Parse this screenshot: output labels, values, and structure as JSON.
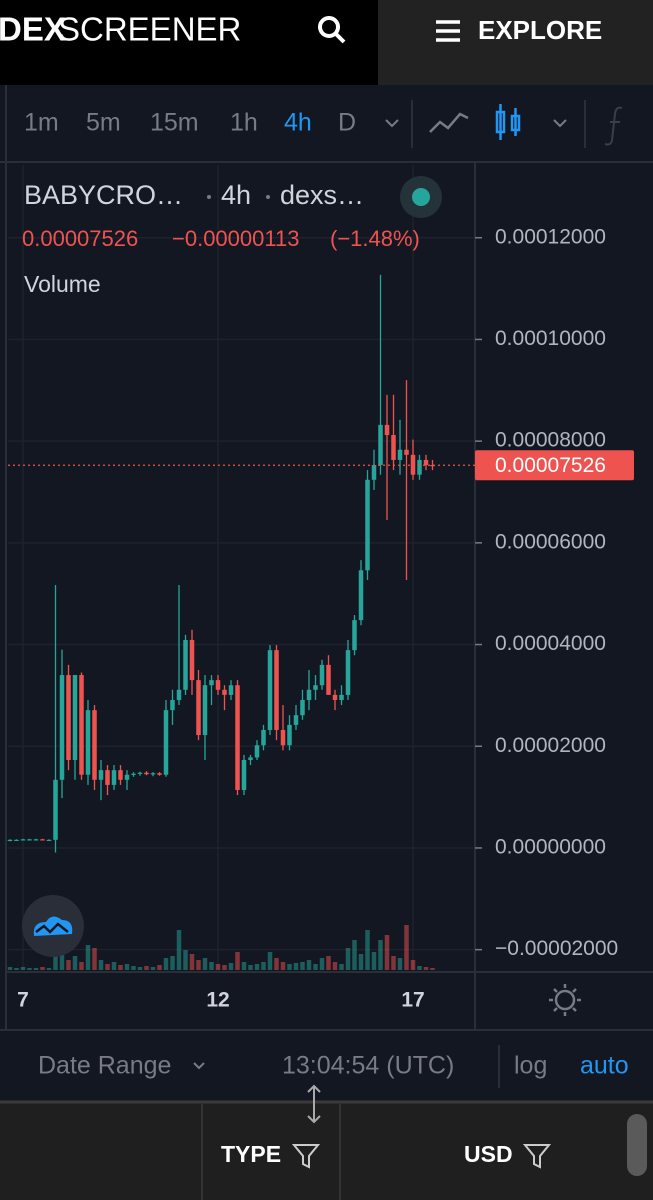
{
  "header": {
    "logo_bold": "DEX",
    "logo_light": "SCREENER",
    "menu": "EXPLORE"
  },
  "toolbar": {
    "intervals": [
      "1m",
      "5m",
      "15m",
      "1h",
      "4h",
      "D"
    ],
    "active": "4h"
  },
  "legend": {
    "symbol": "BABYCRO…",
    "interval": "4h",
    "exchange": "dexs…",
    "indicator": "Volume"
  },
  "chart_data": {
    "type": "candlestick",
    "categories": [
      null,
      null,
      "7",
      null,
      null,
      null,
      null,
      null,
      null,
      null,
      null,
      null,
      null,
      null,
      null,
      null,
      null,
      null,
      null,
      null,
      null,
      null,
      null,
      null,
      null,
      null,
      null,
      null,
      null,
      null,
      null,
      null,
      "12",
      null,
      null,
      null,
      null,
      null,
      null,
      null,
      null,
      null,
      null,
      null,
      null,
      null,
      null,
      null,
      null,
      null,
      null,
      null,
      null,
      null,
      null,
      null,
      null,
      null,
      null,
      null,
      null,
      null,
      "17",
      null,
      null,
      null
    ],
    "open": [
      1.5e-06,
      1.6e-06,
      1.6e-06,
      1.7e-06,
      1.7e-06,
      1.7e-06,
      1.6e-06,
      1.6e-06,
      1.34e-05,
      3.4e-05,
      1.73e-05,
      3.4e-05,
      1.44e-05,
      2.71e-05,
      1.34e-05,
      1.53e-05,
      1.24e-05,
      1.53e-05,
      1.34e-05,
      1.44e-05,
      1.46e-05,
      1.48e-05,
      1.45e-05,
      1.47e-05,
      1.44e-05,
      2.71e-05,
      2.91e-05,
      3.11e-05,
      4.09e-05,
      3.3e-05,
      2.22e-05,
      3.2e-05,
      3.3e-05,
      3.11e-05,
      3.01e-05,
      3.2e-05,
      1.14e-05,
      1.73e-05,
      1.78e-05,
      2.02e-05,
      2.32e-05,
      3.89e-05,
      2.32e-05,
      2.02e-05,
      2.42e-05,
      2.61e-05,
      2.91e-05,
      3.11e-05,
      3.2e-05,
      3.6e-05,
      3.01e-05,
      2.91e-05,
      3.01e-05,
      3.89e-05,
      4.48e-05,
      5.46e-05,
      7.24e-05,
      7.53e-05,
      8.32e-05,
      8.12e-05,
      7.63e-05,
      7.83e-05,
      7.73e-05,
      7.34e-05,
      7.63e-05,
      7.53e-05
    ],
    "high": [
      1.7e-06,
      1.7e-06,
      1.8e-06,
      1.8e-06,
      1.8e-06,
      1.8e-06,
      1.7e-06,
      5.17e-05,
      3.9e-05,
      3.6e-05,
      3.4e-05,
      3.45e-05,
      2.91e-05,
      2.81e-05,
      1.73e-05,
      1.63e-05,
      1.63e-05,
      1.63e-05,
      1.53e-05,
      1.49e-05,
      1.5e-05,
      1.51e-05,
      1.49e-05,
      1.49e-05,
      2.91e-05,
      3.11e-05,
      5.17e-05,
      4.19e-05,
      4.29e-05,
      3.5e-05,
      3.4e-05,
      3.4e-05,
      3.4e-05,
      3.2e-05,
      3.3e-05,
      3.3e-05,
      1.83e-05,
      1.83e-05,
      2.12e-05,
      2.42e-05,
      3.99e-05,
      3.99e-05,
      2.81e-05,
      2.61e-05,
      2.81e-05,
      3.11e-05,
      3.5e-05,
      3.4e-05,
      3.7e-05,
      3.79e-05,
      3.11e-05,
      3.2e-05,
      4.09e-05,
      4.58e-05,
      5.66e-05,
      7.43e-05,
      7.83e-05,
      0.0001127,
      8.91e-05,
      8.91e-05,
      8.42e-05,
      9.2e-05,
      8.03e-05,
      7.73e-05,
      7.73e-05,
      7.63e-05
    ],
    "low": [
      1.3e-06,
      1.4e-06,
      1.5e-06,
      1.5e-06,
      1.6e-06,
      1.5e-06,
      1.4e-06,
      -9e-07,
      9.8e-06,
      1.53e-05,
      1.34e-05,
      1.34e-05,
      1.24e-05,
      1.14e-05,
      9.4e-06,
      1.04e-05,
      1.14e-05,
      1.24e-05,
      1.14e-05,
      1.4e-05,
      1.42e-05,
      1.43e-05,
      1.41e-05,
      1.42e-05,
      1.4e-05,
      2.42e-05,
      2.81e-05,
      3.01e-05,
      3.01e-05,
      2.12e-05,
      1.73e-05,
      2.81e-05,
      3.01e-05,
      2.71e-05,
      2.91e-05,
      1.04e-05,
      1.04e-05,
      1.63e-05,
      1.73e-05,
      1.92e-05,
      2.22e-05,
      2.12e-05,
      1.92e-05,
      1.92e-05,
      2.32e-05,
      2.52e-05,
      2.71e-05,
      2.91e-05,
      3.11e-05,
      3.01e-05,
      2.71e-05,
      2.81e-05,
      2.91e-05,
      3.79e-05,
      4.38e-05,
      5.27e-05,
      7.04e-05,
      7.34e-05,
      6.45e-05,
      7.43e-05,
      7.34e-05,
      5.27e-05,
      7.24e-05,
      7.24e-05,
      7.43e-05,
      7.43e-05
    ],
    "close": [
      1.6e-06,
      1.6e-06,
      1.7e-06,
      1.7e-06,
      1.7e-06,
      1.6e-06,
      1.6e-06,
      1.34e-05,
      3.4e-05,
      1.73e-05,
      3.4e-05,
      1.44e-05,
      2.71e-05,
      1.34e-05,
      1.53e-05,
      1.24e-05,
      1.53e-05,
      1.34e-05,
      1.44e-05,
      1.46e-05,
      1.48e-05,
      1.45e-05,
      1.47e-05,
      1.44e-05,
      2.71e-05,
      2.91e-05,
      3.11e-05,
      4.09e-05,
      3.3e-05,
      2.22e-05,
      3.2e-05,
      3.3e-05,
      3.11e-05,
      3.01e-05,
      3.2e-05,
      1.14e-05,
      1.73e-05,
      1.78e-05,
      2.02e-05,
      2.32e-05,
      3.89e-05,
      2.32e-05,
      2.02e-05,
      2.42e-05,
      2.61e-05,
      2.91e-05,
      3.11e-05,
      3.2e-05,
      3.6e-05,
      3.01e-05,
      2.91e-05,
      3.01e-05,
      3.89e-05,
      4.48e-05,
      5.46e-05,
      7.24e-05,
      7.53e-05,
      8.32e-05,
      8.12e-05,
      7.63e-05,
      7.83e-05,
      7.73e-05,
      7.34e-05,
      7.63e-05,
      7.53e-05,
      7.526e-05
    ],
    "volume": [
      3,
      2,
      3,
      2,
      2,
      3,
      2,
      40,
      18,
      10,
      14,
      8,
      25,
      22,
      10,
      6,
      8,
      5,
      6,
      4,
      3,
      4,
      3,
      5,
      12,
      14,
      40,
      20,
      16,
      10,
      12,
      8,
      6,
      5,
      7,
      18,
      8,
      5,
      6,
      8,
      18,
      12,
      8,
      6,
      7,
      8,
      10,
      6,
      12,
      14,
      8,
      6,
      22,
      30,
      16,
      40,
      18,
      30,
      35,
      14,
      12,
      45,
      10,
      4,
      3,
      2
    ],
    "up_color": "#26a69a",
    "down_color": "#ef5350",
    "ylim": [
      -2.4e-05,
      0.0001343
    ],
    "yticks": [
      {
        "value": -2e-05,
        "label": "−0.00002000"
      },
      {
        "value": 0,
        "label": "0.00000000"
      },
      {
        "value": 2e-05,
        "label": "0.00002000"
      },
      {
        "value": 4e-05,
        "label": "0.00004000"
      },
      {
        "value": 6e-05,
        "label": "0.00006000"
      },
      {
        "value": 8e-05,
        "label": "0.00008000"
      },
      {
        "value": 0.0001,
        "label": "0.00010000"
      },
      {
        "value": 0.00012,
        "label": "0.00012000"
      }
    ],
    "grid": true,
    "last_price": {
      "value": 7.526e-05,
      "label": "0.00007526"
    },
    "change": {
      "value": -1.13e-06,
      "label": "−0.00000113"
    },
    "change_percent": {
      "value": -1.48,
      "label": "(−1.48%)"
    }
  },
  "footer": {
    "date_range": "Date Range",
    "time": "13:04:54 (UTC)",
    "log": "log",
    "auto": "auto"
  },
  "filters": {
    "type": "TYPE",
    "currency": "USD"
  }
}
